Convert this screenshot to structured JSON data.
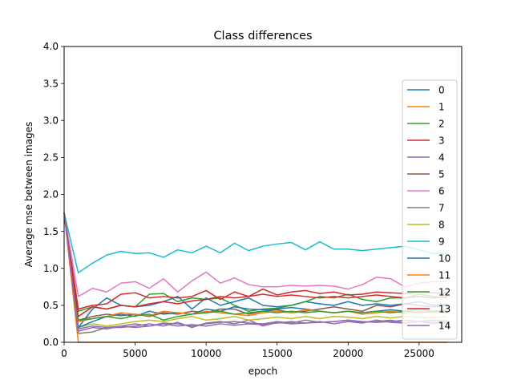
{
  "chart_data": {
    "type": "line",
    "title": "Class differences",
    "xlabel": "epoch",
    "ylabel": "Average mse between images",
    "xlim": [
      0,
      28000
    ],
    "ylim": [
      0,
      4.0
    ],
    "xticks": [
      0,
      5000,
      10000,
      15000,
      20000,
      25000
    ],
    "xtick_labels": [
      "0",
      "5000",
      "10000",
      "15000",
      "20000",
      "25000"
    ],
    "yticks": [
      0.0,
      0.5,
      1.0,
      1.5,
      2.0,
      2.5,
      3.0,
      3.5,
      4.0
    ],
    "ytick_labels": [
      "0.0",
      "0.5",
      "1.0",
      "1.5",
      "2.0",
      "2.5",
      "3.0",
      "3.5",
      "4.0"
    ],
    "grid": false,
    "legend_position": "right",
    "x": [
      0,
      1000,
      2000,
      3000,
      4000,
      5000,
      6000,
      7000,
      8000,
      9000,
      10000,
      11000,
      12000,
      13000,
      14000,
      15000,
      16000,
      17000,
      18000,
      19000,
      20000,
      21000,
      22000,
      23000,
      24000,
      25000,
      26000,
      27000
    ],
    "series": [
      {
        "name": "0",
        "color": "#1f77b4",
        "values": [
          1.75,
          0.2,
          0.45,
          0.6,
          0.5,
          0.48,
          0.5,
          0.55,
          0.62,
          0.45,
          0.6,
          0.5,
          0.55,
          0.6,
          0.5,
          0.48,
          0.5,
          0.55,
          0.52,
          0.5,
          0.55,
          0.5,
          0.52,
          0.5,
          0.52,
          0.55,
          0.5,
          0.52
        ]
      },
      {
        "name": "1",
        "color": "#ff7f0e",
        "values": [
          1.75,
          0.0,
          0.0,
          0.0,
          0.0,
          0.0,
          0.0,
          0.0,
          0.0,
          0.0,
          0.0,
          0.0,
          0.0,
          0.0,
          0.0,
          0.0,
          0.0,
          0.0,
          0.0,
          0.0,
          0.0,
          0.0,
          0.0,
          0.0,
          0.0,
          0.0,
          0.0,
          0.0
        ]
      },
      {
        "name": "2",
        "color": "#2ca02c",
        "values": [
          1.75,
          0.42,
          0.48,
          0.45,
          0.5,
          0.48,
          0.65,
          0.66,
          0.55,
          0.6,
          0.58,
          0.6,
          0.5,
          0.42,
          0.45,
          0.46,
          0.5,
          0.55,
          0.62,
          0.6,
          0.65,
          0.58,
          0.55,
          0.6,
          0.6,
          0.65,
          0.62,
          0.6
        ]
      },
      {
        "name": "3",
        "color": "#d62728",
        "values": [
          1.75,
          0.45,
          0.5,
          0.52,
          0.65,
          0.67,
          0.6,
          0.62,
          0.6,
          0.62,
          0.7,
          0.58,
          0.68,
          0.62,
          0.72,
          0.64,
          0.68,
          0.7,
          0.66,
          0.68,
          0.64,
          0.65,
          0.68,
          0.67,
          0.66,
          0.68,
          0.67,
          0.66
        ]
      },
      {
        "name": "4",
        "color": "#9467bd",
        "values": [
          1.75,
          0.18,
          0.22,
          0.2,
          0.2,
          0.22,
          0.25,
          0.22,
          0.27,
          0.2,
          0.26,
          0.28,
          0.25,
          0.3,
          0.22,
          0.27,
          0.25,
          0.26,
          0.28,
          0.25,
          0.28,
          0.26,
          0.3,
          0.27,
          0.26,
          0.28,
          0.25,
          0.27
        ]
      },
      {
        "name": "5",
        "color": "#8c564b",
        "values": [
          1.75,
          0.3,
          0.35,
          0.38,
          0.36,
          0.38,
          0.35,
          0.4,
          0.38,
          0.42,
          0.4,
          0.45,
          0.45,
          0.38,
          0.42,
          0.44,
          0.4,
          0.42,
          0.45,
          0.48,
          0.45,
          0.42,
          0.5,
          0.48,
          0.52,
          0.5,
          0.48,
          0.5
        ]
      },
      {
        "name": "6",
        "color": "#e377c2",
        "values": [
          1.75,
          0.62,
          0.73,
          0.68,
          0.8,
          0.82,
          0.73,
          0.86,
          0.68,
          0.83,
          0.95,
          0.8,
          0.87,
          0.78,
          0.75,
          0.75,
          0.77,
          0.76,
          0.77,
          0.76,
          0.72,
          0.78,
          0.88,
          0.86,
          0.75,
          0.8,
          0.82,
          0.82
        ]
      },
      {
        "name": "7",
        "color": "#7f7f7f",
        "values": [
          1.75,
          0.12,
          0.14,
          0.2,
          0.22,
          0.25,
          0.22,
          0.26,
          0.25,
          0.22,
          0.25,
          0.27,
          0.28,
          0.26,
          0.25,
          0.28,
          0.26,
          0.3,
          0.27,
          0.28,
          0.3,
          0.27,
          0.28,
          0.3,
          0.26,
          0.28,
          0.27,
          0.28
        ]
      },
      {
        "name": "8",
        "color": "#bcbd22",
        "values": [
          1.75,
          0.2,
          0.25,
          0.22,
          0.25,
          0.28,
          0.3,
          0.28,
          0.32,
          0.35,
          0.3,
          0.32,
          0.35,
          0.3,
          0.32,
          0.34,
          0.32,
          0.35,
          0.32,
          0.35,
          0.34,
          0.32,
          0.35,
          0.33,
          0.35,
          0.34,
          0.33,
          0.35
        ]
      },
      {
        "name": "9",
        "color": "#17becf",
        "values": [
          1.75,
          0.94,
          1.07,
          1.18,
          1.23,
          1.2,
          1.21,
          1.15,
          1.25,
          1.21,
          1.3,
          1.21,
          1.34,
          1.24,
          1.3,
          1.33,
          1.35,
          1.25,
          1.36,
          1.26,
          1.26,
          1.24,
          1.26,
          1.28,
          1.3,
          1.25,
          1.2,
          1.2
        ]
      },
      {
        "name": "10",
        "color": "#1f77b4",
        "values": [
          1.75,
          0.2,
          0.28,
          0.35,
          0.38,
          0.35,
          0.42,
          0.38,
          0.4,
          0.38,
          0.45,
          0.42,
          0.48,
          0.45,
          0.44,
          0.45,
          0.47,
          0.45,
          0.42,
          0.4,
          0.42,
          0.4,
          0.42,
          0.44,
          0.42,
          0.45,
          0.42,
          0.44
        ]
      },
      {
        "name": "11",
        "color": "#ff7f0e",
        "values": [
          1.75,
          0.28,
          0.32,
          0.35,
          0.4,
          0.38,
          0.36,
          0.42,
          0.4,
          0.38,
          0.42,
          0.4,
          0.38,
          0.36,
          0.4,
          0.42,
          0.4,
          0.44,
          0.42,
          0.4,
          0.42,
          0.38,
          0.4,
          0.42,
          0.4,
          0.42,
          0.4,
          0.42
        ]
      },
      {
        "name": "12",
        "color": "#2ca02c",
        "values": [
          1.75,
          0.3,
          0.32,
          0.35,
          0.32,
          0.36,
          0.38,
          0.3,
          0.35,
          0.38,
          0.4,
          0.42,
          0.38,
          0.4,
          0.42,
          0.4,
          0.42,
          0.4,
          0.42,
          0.4,
          0.42,
          0.4,
          0.42,
          0.4,
          0.42,
          0.4,
          0.42,
          0.4
        ]
      },
      {
        "name": "13",
        "color": "#d62728",
        "values": [
          1.75,
          0.35,
          0.48,
          0.45,
          0.5,
          0.48,
          0.52,
          0.55,
          0.52,
          0.56,
          0.58,
          0.62,
          0.6,
          0.62,
          0.65,
          0.62,
          0.64,
          0.62,
          0.6,
          0.62,
          0.6,
          0.62,
          0.64,
          0.62,
          0.6,
          0.62,
          0.6,
          0.62
        ]
      },
      {
        "name": "14",
        "color": "#9467bd",
        "values": [
          1.75,
          0.15,
          0.2,
          0.18,
          0.22,
          0.2,
          0.22,
          0.25,
          0.22,
          0.24,
          0.22,
          0.25,
          0.23,
          0.25,
          0.24,
          0.26,
          0.28,
          0.26,
          0.27,
          0.28,
          0.3,
          0.28,
          0.27,
          0.28,
          0.3,
          0.28,
          0.3,
          0.29
        ]
      }
    ]
  }
}
